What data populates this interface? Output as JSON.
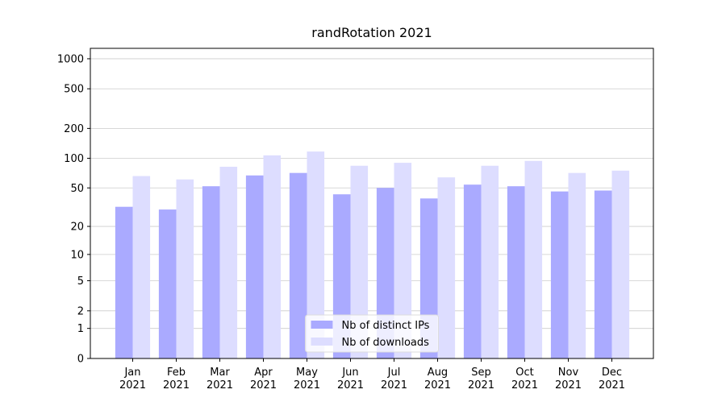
{
  "chart_data": {
    "type": "bar",
    "title": "randRotation 2021",
    "categories": [
      "Jan 2021",
      "Feb 2021",
      "Mar 2021",
      "Apr 2021",
      "May 2021",
      "Jun 2021",
      "Jul 2021",
      "Aug 2021",
      "Sep 2021",
      "Oct 2021",
      "Nov 2021",
      "Dec 2021"
    ],
    "series": [
      {
        "name": "Nb of distinct IPs",
        "color": "#aaaaff",
        "values": [
          32,
          30,
          52,
          67,
          71,
          43,
          50,
          39,
          54,
          52,
          46,
          47
        ]
      },
      {
        "name": "Nb of downloads",
        "color": "#ddddff",
        "values": [
          66,
          61,
          82,
          107,
          117,
          84,
          90,
          64,
          84,
          94,
          71,
          75
        ]
      }
    ],
    "y_scale": "log1p",
    "ylim": [
      0,
      1272
    ],
    "yticks": [
      0,
      1,
      2,
      5,
      10,
      20,
      50,
      100,
      200,
      500,
      1000
    ],
    "grid": true,
    "legend": "lower center"
  }
}
